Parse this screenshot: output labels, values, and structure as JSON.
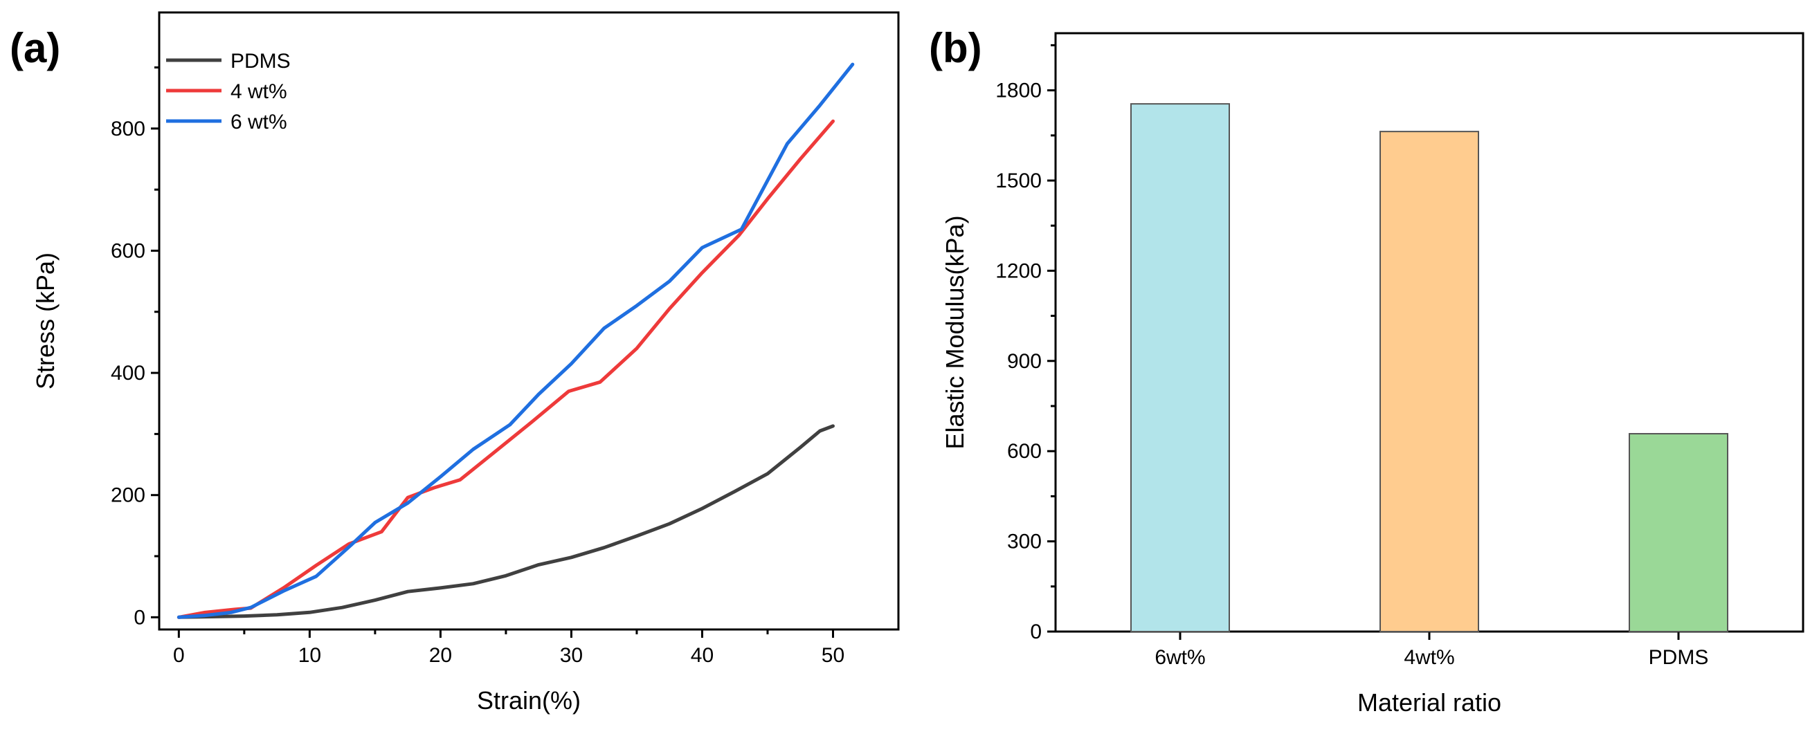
{
  "panels": {
    "a": {
      "label": "(a)"
    },
    "b": {
      "label": "(b)"
    }
  },
  "chart_data": [
    {
      "type": "line",
      "panel": "(a)",
      "title": "",
      "xlabel": "Strain(%)",
      "ylabel": "Stress (kPa)",
      "xlim": [
        -1.5,
        55
      ],
      "ylim": [
        -20,
        990
      ],
      "xticks": [
        0,
        10,
        20,
        30,
        40,
        50
      ],
      "yticks": [
        0,
        200,
        400,
        600,
        800
      ],
      "grid": false,
      "legend_position": "top-left",
      "series": [
        {
          "name": "PDMS",
          "color": "#404040",
          "x": [
            0,
            2.5,
            5,
            7.5,
            10,
            12.5,
            15,
            17.5,
            20,
            22.5,
            25,
            27.5,
            30,
            32.5,
            35,
            37.5,
            40,
            42.5,
            45,
            47.5,
            49,
            50
          ],
          "y": [
            0,
            1,
            2,
            4,
            8,
            16,
            28,
            42,
            48,
            55,
            68,
            86,
            98,
            114,
            133,
            153,
            178,
            206,
            235,
            278,
            305,
            313
          ]
        },
        {
          "name": "4 wt%",
          "color": "#ee3a3a",
          "x": [
            0,
            2,
            4.3,
            5.5,
            8,
            10.5,
            13,
            15.5,
            17.5,
            19.5,
            21.5,
            24,
            27,
            29.8,
            32.2,
            35,
            37.5,
            40,
            42.8,
            45,
            47.5,
            50
          ],
          "y": [
            0,
            8,
            13,
            15,
            48,
            85,
            120,
            140,
            196,
            212,
            225,
            268,
            320,
            370,
            385,
            440,
            505,
            564,
            625,
            685,
            750,
            812
          ]
        },
        {
          "name": "6 wt%",
          "color": "#1f6fe0",
          "x": [
            0,
            2,
            4,
            5.5,
            8,
            10.5,
            13,
            15,
            17.5,
            20,
            22.5,
            25.3,
            27.5,
            30,
            32.5,
            35,
            37.5,
            40,
            43,
            46.5,
            49,
            51.5
          ],
          "y": [
            0,
            3,
            8,
            16,
            43,
            67,
            115,
            155,
            187,
            230,
            275,
            315,
            365,
            415,
            473,
            510,
            550,
            605,
            635,
            775,
            838,
            905
          ]
        }
      ]
    },
    {
      "type": "bar",
      "panel": "(b)",
      "title": "",
      "xlabel": "Material ratio",
      "ylabel": "Elastic Modulus(kPa)",
      "ylim": [
        0,
        1990
      ],
      "yticks": [
        0,
        300,
        600,
        900,
        1200,
        1500,
        1800
      ],
      "grid": false,
      "categories": [
        "6wt%",
        "4wt%",
        "PDMS"
      ],
      "values": [
        1755,
        1663,
        658
      ],
      "colors": [
        "#b2e4ea",
        "#ffcc8f",
        "#9ad897"
      ]
    }
  ]
}
